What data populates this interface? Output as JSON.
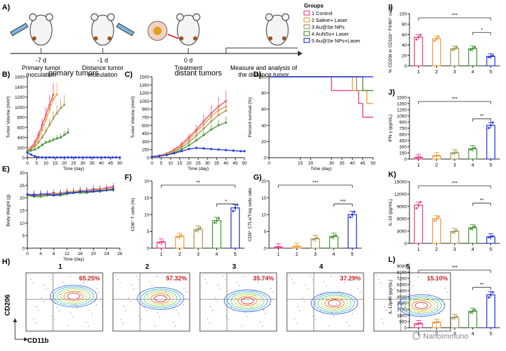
{
  "panel_labels": {
    "A": "A)",
    "B": "B)",
    "C": "C)",
    "D": "D)",
    "E": "E)",
    "F": "F)",
    "G": "G)",
    "H": "H)",
    "I": "I)",
    "J": "J)",
    "K": "K)",
    "L": "L)"
  },
  "timeline": {
    "events": [
      {
        "day": "-7 d",
        "label1": "Primary tumor",
        "label2": "inoculation"
      },
      {
        "day": "-1 d",
        "label1": "Distance tumor",
        "label2": "inoculation"
      },
      {
        "day": "0 d",
        "label1": "Treatment",
        "label2": ""
      },
      {
        "day": "",
        "label1": "Measure and analysis of",
        "label2": "the distance tumor"
      }
    ]
  },
  "groups": {
    "title": "Groups",
    "items": [
      {
        "label": "1 Control",
        "color": "#e8468c"
      },
      {
        "label": "2 Saline+ Laser",
        "color": "#f0a040"
      },
      {
        "label": "3 Au@Se NPs",
        "color": "#a89a5a"
      },
      {
        "label": "4 AuNSs+ Laser",
        "color": "#4a9a3a"
      },
      {
        "label": "5 Au@Se NPs+Laser",
        "color": "#2a3ae0"
      }
    ]
  },
  "watermark": "NanoImmuno",
  "chart_data": [
    {
      "id": "B",
      "type": "line",
      "title": "primary tumors",
      "xlabel": "Time (day)",
      "ylabel": "Tumor Volume (mm³)",
      "xlim": [
        0,
        50
      ],
      "ylim": [
        0,
        1600
      ],
      "xticks": [
        "0",
        "5",
        "10",
        "15",
        "20",
        "25",
        "30",
        "35",
        "40",
        "45",
        "50"
      ],
      "yticks": [
        "0",
        "200",
        "400",
        "600",
        "800",
        "1000",
        "1200",
        "1400",
        "1600"
      ],
      "series": [
        {
          "x": [
            0,
            2,
            4,
            6,
            8,
            10,
            12,
            14
          ],
          "y": [
            150,
            200,
            300,
            450,
            650,
            850,
            1050,
            1250
          ],
          "color": "#e8468c"
        },
        {
          "x": [
            0,
            2,
            4,
            6,
            8,
            10,
            12,
            14,
            16
          ],
          "y": [
            140,
            180,
            260,
            380,
            550,
            750,
            950,
            1150,
            1250
          ],
          "color": "#f0a040"
        },
        {
          "x": [
            0,
            2,
            4,
            6,
            8,
            10,
            12,
            14,
            16,
            18,
            20
          ],
          "y": [
            130,
            170,
            220,
            300,
            400,
            520,
            650,
            780,
            880,
            980,
            1050
          ],
          "color": "#a89a5a"
        },
        {
          "x": [
            0,
            2,
            4,
            6,
            8,
            10,
            12,
            14,
            16,
            18,
            20,
            22
          ],
          "y": [
            120,
            140,
            160,
            200,
            250,
            300,
            320,
            350,
            380,
            400,
            450,
            500
          ],
          "color": "#4a9a3a"
        },
        {
          "x": [
            0,
            2,
            4,
            6,
            8,
            10,
            12,
            14,
            16,
            18,
            20,
            22,
            24,
            26,
            28,
            30,
            32,
            34,
            36,
            38,
            40,
            42,
            44,
            46,
            48,
            50
          ],
          "y": [
            100,
            60,
            30,
            10,
            5,
            5,
            5,
            5,
            5,
            5,
            5,
            5,
            5,
            5,
            5,
            5,
            5,
            5,
            5,
            5,
            5,
            5,
            5,
            5,
            5,
            5
          ],
          "color": "#2a3ae0"
        }
      ]
    },
    {
      "id": "C",
      "type": "line",
      "title": "distant tumors",
      "xlabel": "Time (day)",
      "ylabel": "Tumor Volume (mm³)",
      "xlim": [
        0,
        50
      ],
      "ylim": [
        0,
        1500
      ],
      "xticks": [
        "0",
        "5",
        "10",
        "15",
        "20",
        "25",
        "30",
        "35",
        "40",
        "45",
        "50"
      ],
      "yticks": [
        "0",
        "150",
        "300",
        "450",
        "600",
        "750",
        "900",
        "1050",
        "1200",
        "1350",
        "1500"
      ],
      "series": [
        {
          "x": [
            0,
            4,
            8,
            12,
            16,
            20,
            24,
            28,
            32,
            36,
            40
          ],
          "y": [
            20,
            40,
            80,
            150,
            250,
            380,
            520,
            680,
            820,
            950,
            1050
          ],
          "color": "#e8468c"
        },
        {
          "x": [
            0,
            4,
            8,
            12,
            16,
            20,
            24,
            28,
            32,
            36,
            40
          ],
          "y": [
            20,
            35,
            70,
            130,
            220,
            340,
            480,
            620,
            760,
            880,
            950
          ],
          "color": "#f0a040"
        },
        {
          "x": [
            0,
            4,
            8,
            12,
            16,
            20,
            24,
            28,
            32,
            36,
            40
          ],
          "y": [
            20,
            30,
            60,
            110,
            190,
            290,
            410,
            540,
            670,
            790,
            870
          ],
          "color": "#a89a5a"
        },
        {
          "x": [
            0,
            4,
            8,
            12,
            16,
            20,
            24,
            28,
            32,
            36,
            40
          ],
          "y": [
            20,
            30,
            50,
            90,
            150,
            230,
            320,
            420,
            520,
            600,
            650
          ],
          "color": "#4a9a3a"
        },
        {
          "x": [
            0,
            4,
            8,
            12,
            16,
            20,
            24,
            28,
            32,
            36,
            40,
            44,
            48,
            50
          ],
          "y": [
            20,
            30,
            50,
            80,
            120,
            160,
            180,
            170,
            160,
            150,
            140,
            130,
            120,
            120
          ],
          "color": "#2a3ae0"
        }
      ]
    },
    {
      "id": "D",
      "type": "line",
      "xlabel": "Time (day)",
      "ylabel": "Percent survival (%)",
      "xlim": [
        0,
        50
      ],
      "ylim": [
        0,
        100
      ],
      "xticks": [
        "0",
        "15",
        "20",
        "30",
        "35",
        "40",
        "45",
        "50"
      ],
      "yticks": [
        "0",
        "20",
        "40",
        "60",
        "80",
        "100"
      ],
      "series": [
        {
          "x": [
            0,
            30,
            30,
            43,
            43,
            45,
            45,
            50
          ],
          "y": [
            100,
            100,
            83,
            83,
            67,
            67,
            50,
            50
          ],
          "color": "#e8468c"
        },
        {
          "x": [
            0,
            40,
            40,
            47,
            47,
            50
          ],
          "y": [
            100,
            100,
            83,
            83,
            67,
            67
          ],
          "color": "#f0a040"
        },
        {
          "x": [
            0,
            42,
            42,
            50
          ],
          "y": [
            100,
            100,
            83,
            83
          ],
          "color": "#a89a5a"
        },
        {
          "x": [
            0,
            45,
            45,
            50
          ],
          "y": [
            100,
            100,
            83,
            83
          ],
          "color": "#4a9a3a"
        },
        {
          "x": [
            0,
            50
          ],
          "y": [
            100,
            100
          ],
          "color": "#2a3ae0"
        }
      ]
    },
    {
      "id": "E",
      "type": "line",
      "xlabel": "Time (day)",
      "ylabel": "Body Weight (g)",
      "xlim": [
        0,
        28
      ],
      "ylim": [
        0,
        30
      ],
      "xticks": [
        "0",
        "4",
        "8",
        "12",
        "16",
        "20",
        "24",
        "28"
      ],
      "yticks": [
        "0",
        "5",
        "10",
        "15",
        "20",
        "25",
        "30"
      ],
      "series": [
        {
          "x": [
            0,
            2,
            4,
            6,
            8,
            10,
            12,
            14,
            16,
            18,
            20,
            22,
            24,
            26
          ],
          "y": [
            21,
            21.5,
            21,
            21.5,
            22,
            21.5,
            22,
            22.5,
            23,
            23,
            23.5,
            23.5,
            24,
            24.5
          ],
          "color": "#e8468c"
        },
        {
          "x": [
            0,
            2,
            4,
            6,
            8,
            10,
            12,
            14,
            16,
            18,
            20,
            22,
            24,
            26
          ],
          "y": [
            21.5,
            21,
            21,
            21,
            21.5,
            22,
            22.5,
            22.5,
            23,
            23,
            23,
            23.5,
            23.5,
            24
          ],
          "color": "#f0a040"
        },
        {
          "x": [
            0,
            2,
            4,
            6,
            8,
            10,
            12,
            14,
            16,
            18,
            20,
            22,
            24,
            26
          ],
          "y": [
            21,
            21,
            20.5,
            21,
            21.5,
            21.5,
            22,
            22,
            22.5,
            22.5,
            23,
            23,
            23,
            23.5
          ],
          "color": "#a89a5a"
        },
        {
          "x": [
            0,
            2,
            4,
            6,
            8,
            10,
            12,
            14,
            16,
            18,
            20,
            22,
            24,
            26
          ],
          "y": [
            21,
            20.5,
            20.5,
            21,
            21,
            21,
            21.5,
            22,
            22,
            22,
            22.5,
            22.5,
            23,
            23
          ],
          "color": "#4a9a3a"
        },
        {
          "x": [
            0,
            2,
            4,
            6,
            8,
            10,
            12,
            14,
            16,
            18,
            20,
            22,
            24,
            26
          ],
          "y": [
            21.5,
            21,
            21.5,
            21.5,
            21,
            21.5,
            22,
            22,
            22.5,
            22.5,
            22.5,
            23,
            23,
            23.5
          ],
          "color": "#2a3ae0"
        }
      ]
    },
    {
      "id": "F",
      "type": "bar",
      "ylabel": "CD8⁺ T cells (%)",
      "categories": [
        "1",
        "2",
        "3",
        "4",
        "5"
      ],
      "values": [
        1.8,
        3.5,
        5.6,
        8.2,
        12.0
      ],
      "ylim": [
        0,
        20
      ],
      "yticks": [
        "0",
        "5",
        "10",
        "15",
        "20"
      ],
      "sig": [
        {
          "label": "**",
          "from": 0,
          "to": 4
        },
        {
          "label": "*",
          "from": 3,
          "to": 4
        }
      ]
    },
    {
      "id": "G",
      "type": "bar",
      "ylabel": "CD8⁺ CTLs/Treg cells ratio",
      "categories": [
        "1",
        "2",
        "3",
        "4",
        "5"
      ],
      "values": [
        0.3,
        0.5,
        2.8,
        3.5,
        10.0
      ],
      "ylim": [
        0,
        20
      ],
      "yticks": [
        "0",
        "5",
        "10",
        "15",
        "20"
      ],
      "sig": [
        {
          "label": "***",
          "from": 0,
          "to": 4
        },
        {
          "label": "***",
          "from": 3,
          "to": 4
        }
      ]
    },
    {
      "id": "I",
      "type": "bar",
      "ylabel": "% CD206 in CD11b⁺ F4/80⁺ cells",
      "categories": [
        "1",
        "2",
        "3",
        "4",
        "5"
      ],
      "values": [
        55,
        52,
        33,
        33,
        18
      ],
      "ylim": [
        0,
        100
      ],
      "yticks": [
        "0",
        "20",
        "40",
        "60",
        "80",
        "100"
      ],
      "sig": [
        {
          "label": "***",
          "from": 0,
          "to": 4
        },
        {
          "label": "*",
          "from": 3,
          "to": 4
        }
      ]
    },
    {
      "id": "J",
      "type": "bar",
      "ylabel": "IFN-γ (pg/mL)",
      "categories": [
        "1",
        "2",
        "3",
        "4",
        "5"
      ],
      "values": [
        40,
        80,
        150,
        250,
        820
      ],
      "ylim": [
        0,
        1500
      ],
      "yticks": [
        "0",
        "150",
        "300",
        "450",
        "600",
        "750",
        "900",
        "1050",
        "1200",
        "1350",
        "1500"
      ],
      "sig": [
        {
          "label": "***",
          "from": 0,
          "to": 4
        },
        {
          "label": "**",
          "from": 3,
          "to": 4
        }
      ]
    },
    {
      "id": "K",
      "type": "bar",
      "ylabel": "IL-10 (pg/mL)",
      "categories": [
        "1",
        "2",
        "3",
        "4",
        "5"
      ],
      "values": [
        9300,
        6000,
        2900,
        3800,
        1600
      ],
      "ylim": [
        0,
        15000
      ],
      "yticks": [
        "0",
        "3000",
        "6000",
        "9000",
        "12000",
        "15000"
      ],
      "sig": [
        {
          "label": "***",
          "from": 0,
          "to": 4
        },
        {
          "label": "**",
          "from": 3,
          "to": 4
        }
      ]
    },
    {
      "id": "L",
      "type": "bar",
      "ylabel": "IL-12p40 (pg/mL)",
      "categories": [
        "1",
        "2",
        "3",
        "4",
        "5"
      ],
      "values": [
        600,
        800,
        1500,
        2400,
        4800
      ],
      "ylim": [
        0,
        9000
      ],
      "yticks": [
        "0",
        "900",
        "1800",
        "2700",
        "3600",
        "4500",
        "5400",
        "6300",
        "7200",
        "8100",
        "9000"
      ],
      "sig": [
        {
          "label": "***",
          "from": 0,
          "to": 4
        },
        {
          "label": "**",
          "from": 3,
          "to": 4
        }
      ]
    }
  ],
  "flow": {
    "ylabel": "CD206",
    "xlabel": "CD11b",
    "panels": [
      {
        "title": "1",
        "pct": "65.25%"
      },
      {
        "title": "2",
        "pct": "57.32%"
      },
      {
        "title": "3",
        "pct": "35.74%"
      },
      {
        "title": "4",
        "pct": "37.29%"
      },
      {
        "title": "5",
        "pct": "15.10%"
      }
    ]
  }
}
